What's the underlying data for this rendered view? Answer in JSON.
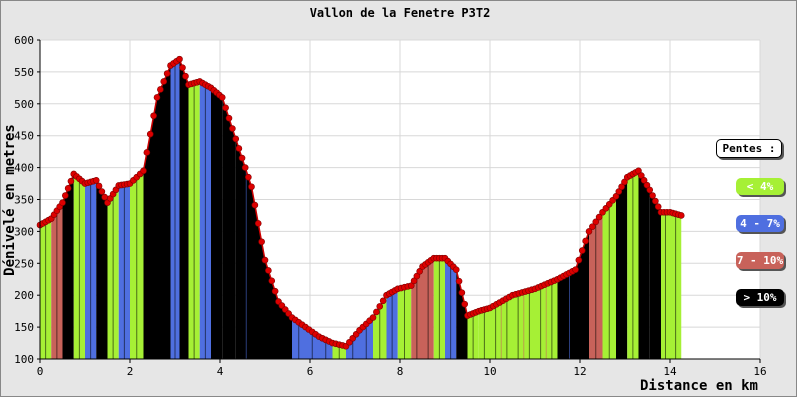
{
  "chart_data": {
    "type": "area",
    "title": "Vallon de la Fenetre P3T2",
    "xlabel": "Distance en km",
    "ylabel": "Dénivelé en metres",
    "xlim": [
      0,
      16
    ],
    "ylim": [
      100,
      600
    ],
    "xticks": [
      "0",
      "2",
      "4",
      "6",
      "8",
      "10",
      "12",
      "14",
      "16"
    ],
    "yticks": [
      "100",
      "150",
      "200",
      "250",
      "300",
      "350",
      "400",
      "450",
      "500",
      "550",
      "600"
    ],
    "grid": true,
    "legend_position": "right",
    "legend_title": "Pentes :",
    "legend": [
      {
        "label": "< 4%",
        "color": "#a6f035"
      },
      {
        "label": "4 - 7%",
        "color": "#4f6fe0"
      },
      {
        "label": "7 - 10%",
        "color": "#c8625a"
      },
      {
        "label": "> 10%",
        "color": "#000000"
      }
    ],
    "x": [
      0.0,
      0.25,
      0.5,
      0.75,
      1.0,
      1.25,
      1.5,
      1.75,
      2.0,
      2.3,
      2.6,
      2.9,
      3.1,
      3.3,
      3.55,
      3.8,
      4.05,
      4.35,
      4.7,
      5.0,
      5.3,
      5.6,
      5.9,
      6.2,
      6.5,
      6.8,
      7.1,
      7.4,
      7.7,
      7.95,
      8.25,
      8.5,
      8.75,
      9.0,
      9.25,
      9.5,
      9.75,
      10.0,
      10.5,
      11.0,
      11.5,
      11.9,
      12.2,
      12.5,
      12.8,
      13.05,
      13.3,
      13.55,
      13.8,
      14.0,
      14.25
    ],
    "y": [
      310,
      320,
      345,
      390,
      375,
      380,
      345,
      372,
      375,
      395,
      510,
      560,
      570,
      530,
      535,
      525,
      510,
      445,
      370,
      255,
      190,
      165,
      150,
      135,
      125,
      120,
      145,
      165,
      200,
      210,
      215,
      245,
      258,
      258,
      240,
      168,
      175,
      180,
      200,
      210,
      225,
      240,
      300,
      330,
      355,
      385,
      395,
      365,
      330,
      330,
      325
    ],
    "segment_slope_class": [
      0,
      2,
      3,
      0,
      1,
      3,
      0,
      1,
      0,
      3,
      3,
      1,
      3,
      0,
      1,
      3,
      3,
      3,
      3,
      3,
      3,
      1,
      1,
      1,
      0,
      1,
      1,
      0,
      1,
      0,
      2,
      2,
      0,
      1,
      3,
      0,
      0,
      0,
      0,
      0,
      3,
      3,
      2,
      0,
      3,
      0,
      3,
      3,
      0,
      0
    ]
  }
}
